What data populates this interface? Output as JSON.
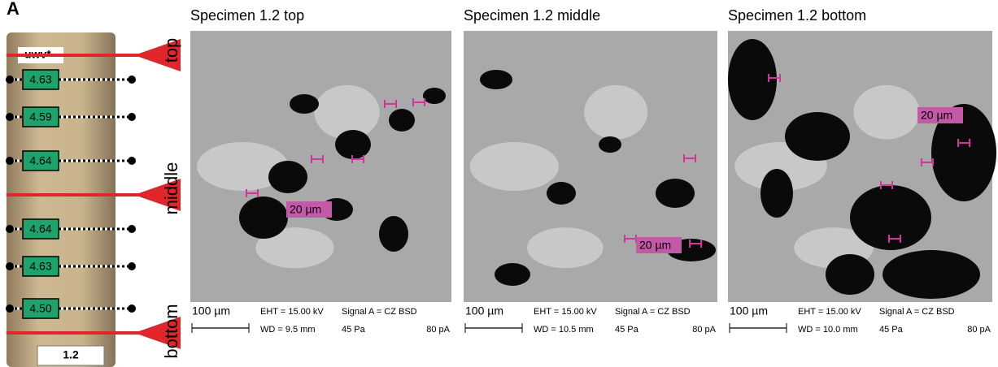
{
  "panel_label": "A",
  "specimen": {
    "top_label": "uwv*",
    "values": [
      "4.63",
      "4.59",
      "4.64",
      "4.64",
      "4.63",
      "4.50"
    ],
    "id": "1.2"
  },
  "positions": [
    "top",
    "middle",
    "bottom"
  ],
  "images": [
    {
      "title": "Specimen 1.2 top",
      "scale": "100 µm",
      "eht": "EHT = 15.00 kV",
      "signal": "Signal A = CZ BSD",
      "wd": "WD =  9.5 mm",
      "pressure": "45 Pa",
      "current": "80 pA",
      "annotation": "20 µm"
    },
    {
      "title": "Specimen 1.2 middle",
      "scale": "100 µm",
      "eht": "EHT = 15.00 kV",
      "signal": "Signal A = CZ BSD",
      "wd": "WD = 10.5 mm",
      "pressure": "45 Pa",
      "current": "80 pA",
      "annotation": "20 µm"
    },
    {
      "title": "Specimen 1.2 bottom",
      "scale": "100 µm",
      "eht": "EHT = 15.00 kV",
      "signal": "Signal A = CZ BSD",
      "wd": "WD = 10.0 mm",
      "pressure": "45 Pa",
      "current": "80 pA",
      "annotation": "20 µm"
    }
  ]
}
